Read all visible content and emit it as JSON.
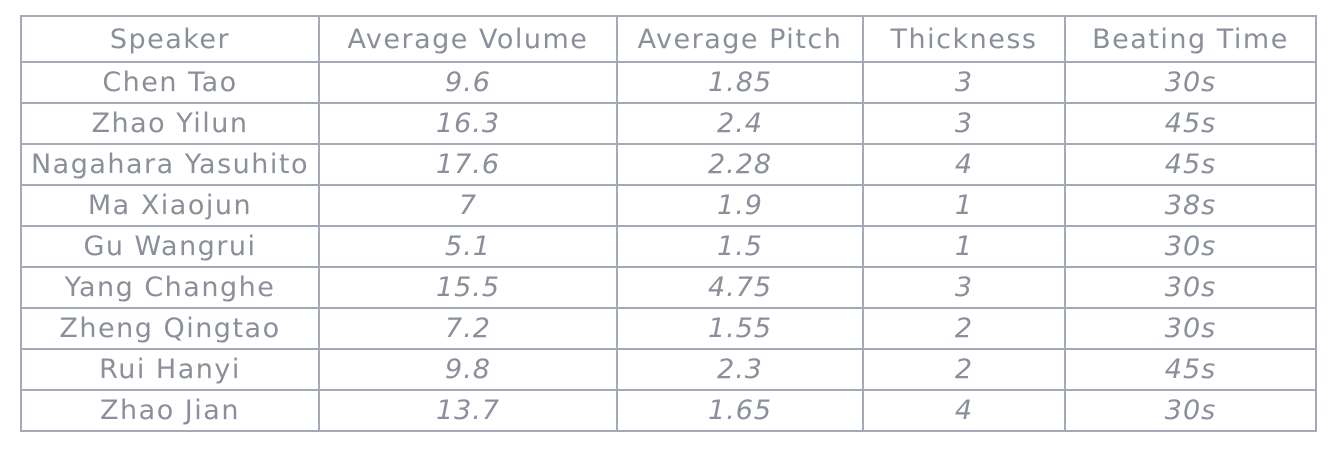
{
  "table": {
    "headers": [
      "Speaker",
      "Average Volume",
      "Average Pitch",
      "Thickness",
      "Beating Time"
    ],
    "rows": [
      [
        "Chen Tao",
        "9.6",
        "1.85",
        "3",
        "30s"
      ],
      [
        "Zhao Yilun",
        "16.3",
        "2.4",
        "3",
        "45s"
      ],
      [
        "Nagahara Yasuhito",
        "17.6",
        "2.28",
        "4",
        "45s"
      ],
      [
        "Ma Xiaojun",
        "7",
        "1.9",
        "1",
        "38s"
      ],
      [
        "Gu Wangrui",
        "5.1",
        "1.5",
        "1",
        "30s"
      ],
      [
        "Yang Changhe",
        "15.5",
        "4.75",
        "3",
        "30s"
      ],
      [
        "Zheng Qingtao",
        "7.2",
        "1.55",
        "2",
        "30s"
      ],
      [
        "Rui Hanyi",
        "9.8",
        "2.3",
        "2",
        "45s"
      ],
      [
        "Zhao Jian",
        "13.7",
        "1.65",
        "4",
        "30s"
      ]
    ]
  }
}
